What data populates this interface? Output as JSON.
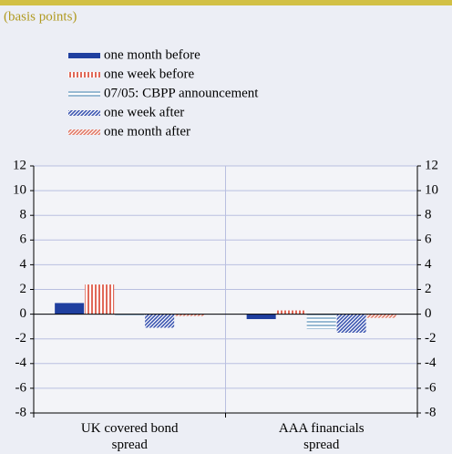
{
  "chart_data": {
    "type": "bar",
    "subtitle": "(basis points)",
    "categories": [
      "UK covered bond spread",
      "AAA financials spread"
    ],
    "series": [
      {
        "name": "one month before",
        "color": "#1f3f9f",
        "hatch": "solid",
        "values": [
          0.9,
          -0.4
        ]
      },
      {
        "name": "one week before",
        "color": "#d9432f",
        "hatch": "vertical",
        "values": [
          2.4,
          0.3
        ]
      },
      {
        "name": "07/05: CBPP announcement",
        "color": "#7fa8c8",
        "hatch": "horizontal",
        "values": [
          -0.1,
          -1.2
        ]
      },
      {
        "name": "one week after",
        "color": "#3b55b0",
        "hatch": "diagonal",
        "values": [
          -1.1,
          -1.5
        ]
      },
      {
        "name": "one month after",
        "color": "#e07a68",
        "hatch": "diagonal",
        "values": [
          -0.15,
          -0.3
        ]
      }
    ],
    "ylim": [
      -8,
      12
    ],
    "yticks": [
      -8,
      -6,
      -4,
      -2,
      0,
      2,
      4,
      6,
      8,
      10,
      12
    ],
    "grid": true
  }
}
